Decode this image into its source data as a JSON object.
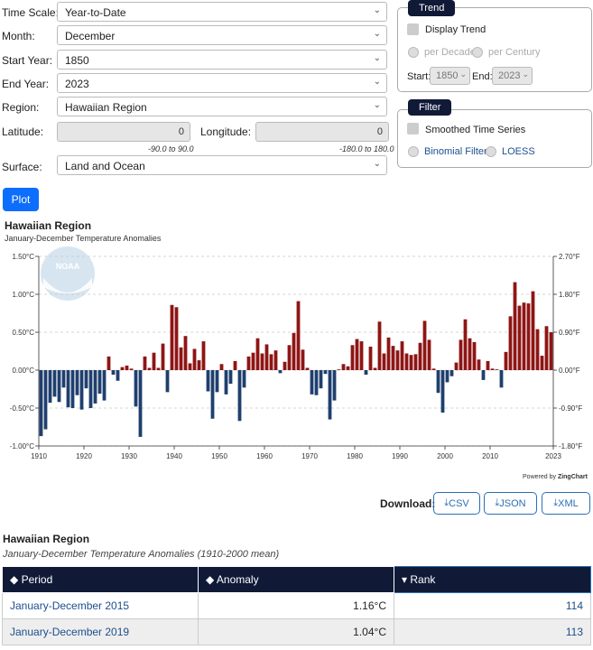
{
  "form": {
    "time_scale_label": "Time Scale:",
    "time_scale_value": "Year-to-Date",
    "month_label": "Month:",
    "month_value": "December",
    "start_year_label": "Start Year:",
    "start_year_value": "1850",
    "end_year_label": "End Year:",
    "end_year_value": "2023",
    "region_label": "Region:",
    "region_value": "Hawaiian Region",
    "latitude_label": "Latitude:",
    "latitude_value": "0",
    "latitude_hint": "-90.0 to 90.0",
    "longitude_label": "Longitude:",
    "longitude_value": "0",
    "longitude_hint": "-180.0 to 180.0",
    "surface_label": "Surface:",
    "surface_value": "Land and Ocean",
    "plot_label": "Plot"
  },
  "trend": {
    "tag": "Trend",
    "display_label": "Display Trend",
    "per_decade": "per Decade",
    "per_century": "per Century",
    "start_label": "Start:",
    "start_value": "1850",
    "end_label": "End:",
    "end_value": "2023"
  },
  "filter": {
    "tag": "Filter",
    "smoothed_label": "Smoothed Time Series",
    "binomial_label": "Binomial Filter",
    "loess_label": "LOESS"
  },
  "chart_header": {
    "title": "Hawaiian Region",
    "subtitle": "January-December Temperature Anomalies",
    "logo_text": "NOAA",
    "powered_prefix": "Powered by ",
    "powered_brand": "ZingChart"
  },
  "chart_data": {
    "type": "bar",
    "x_start": 1910,
    "y_range": [
      -1.0,
      1.5
    ],
    "y_ticks_c": [
      "1.50°C",
      "1.00°C",
      "0.50°C",
      "0.00°C",
      "-0.50°C",
      "-1.00°C"
    ],
    "y_ticks_f": [
      "2.70°F",
      "1.80°F",
      "0.90°F",
      "0.00°F",
      "-0.90°F",
      "-1.80°F"
    ],
    "x_ticks": [
      "1910",
      "1920",
      "1930",
      "1940",
      "1950",
      "1960",
      "1970",
      "1980",
      "1990",
      "2000",
      "2010",
      "2023"
    ],
    "positive_color": "#8e1515",
    "negative_color": "#1f3f6e",
    "values": [
      -0.87,
      -0.78,
      -0.43,
      -0.35,
      -0.42,
      -0.23,
      -0.49,
      -0.5,
      -0.33,
      -0.52,
      -0.24,
      -0.5,
      -0.44,
      -0.31,
      -0.4,
      0.18,
      -0.06,
      -0.14,
      0.04,
      0.06,
      0.02,
      -0.48,
      -0.88,
      0.18,
      0.03,
      0.23,
      0.03,
      0.35,
      -0.29,
      0.86,
      0.83,
      0.3,
      0.45,
      0.09,
      0.28,
      0.13,
      0.38,
      -0.28,
      -0.64,
      -0.29,
      0.08,
      -0.32,
      -0.18,
      0.12,
      -0.67,
      -0.23,
      0.18,
      0.23,
      0.42,
      0.22,
      0.34,
      0.21,
      0.26,
      -0.04,
      0.11,
      0.33,
      0.49,
      0.91,
      0.27,
      0.03,
      -0.32,
      -0.33,
      -0.24,
      -0.05,
      -0.65,
      -0.4,
      0.01,
      0.08,
      0.05,
      0.33,
      0.41,
      0.38,
      -0.06,
      0.31,
      0.03,
      0.64,
      0.22,
      0.43,
      0.32,
      0.26,
      0.38,
      0.22,
      0.2,
      0.21,
      0.36,
      0.65,
      0.4,
      0.02,
      -0.3,
      -0.56,
      -0.16,
      -0.08,
      0.1,
      0.4,
      0.67,
      0.42,
      0.37,
      0.14,
      -0.13,
      0.12,
      0.02,
      0.01,
      -0.23,
      0.24,
      0.71,
      1.16,
      0.85,
      0.89,
      0.88,
      1.04,
      0.54,
      0.19,
      0.58,
      0.5
    ]
  },
  "download": {
    "label": "Download:",
    "csv": "CSV",
    "json": "JSON",
    "xml": "XML"
  },
  "results": {
    "title": "Hawaiian Region",
    "subtitle": "January-December Temperature Anomalies (1910-2000 mean)",
    "columns": [
      "Period",
      "Anomaly",
      "Rank"
    ],
    "rows": [
      {
        "period": "January-December 2015",
        "anomaly": "1.16°C",
        "rank": "114"
      },
      {
        "period": "January-December 2019",
        "anomaly": "1.04°C",
        "rank": "113"
      }
    ]
  }
}
